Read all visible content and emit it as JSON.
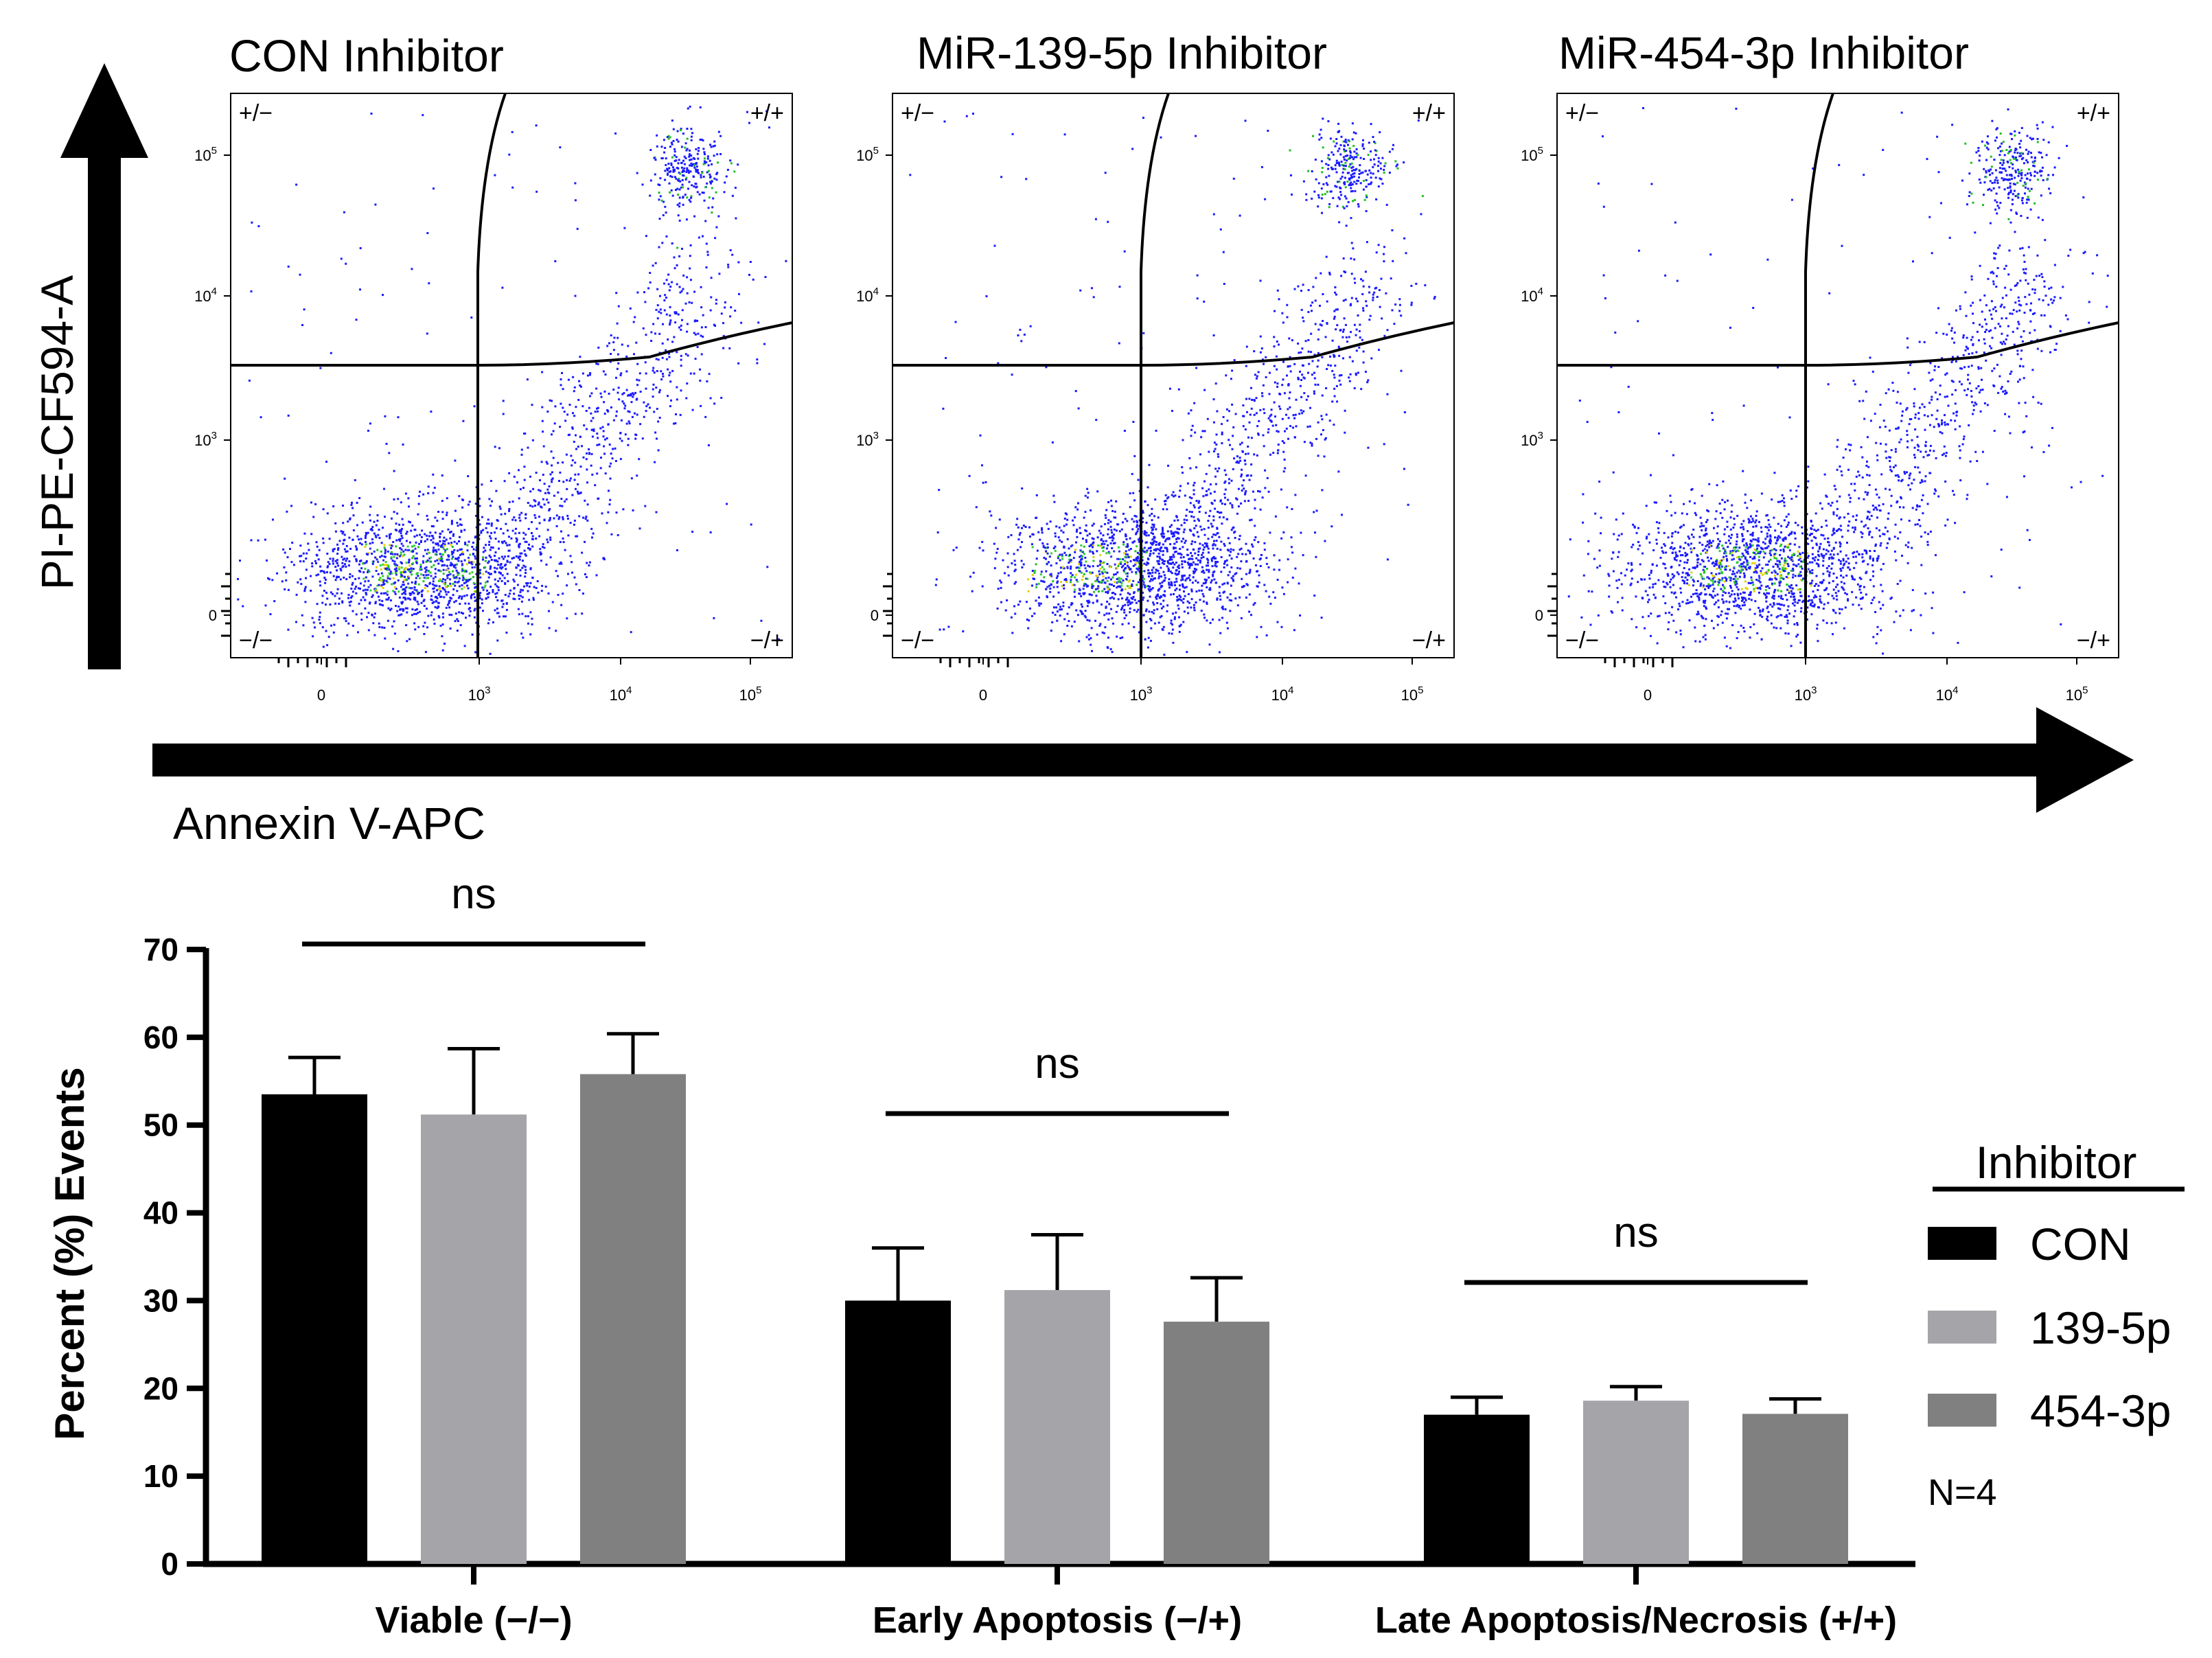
{
  "flow_panels": [
    {
      "title": "CON Inhibitor"
    },
    {
      "title": "MiR-139-5p Inhibitor"
    },
    {
      "title": "MiR-454-3p Inhibitor"
    }
  ],
  "flow_axes": {
    "y_title": "PI-PE-CF594-A",
    "x_title": "Annexin V-APC",
    "y_ticks": [
      "10^5",
      "10^4",
      "10^3",
      "0"
    ],
    "x_ticks": [
      "0",
      "10^3",
      "10^4",
      "10^5"
    ],
    "quadrants": {
      "tl": "+/−",
      "tr": "+/+",
      "bl": "−/−",
      "br": "−/+"
    }
  },
  "legend": {
    "title": "Inhibitor",
    "items": [
      "CON",
      "139-5p",
      "454-3p"
    ],
    "n_label": "N=4"
  },
  "chart_data": {
    "type": "bar",
    "title": "",
    "xlabel": "",
    "ylabel": "Percent (%) Events",
    "ylim": [
      0,
      70
    ],
    "yticks": [
      0,
      10,
      20,
      30,
      40,
      50,
      60,
      70
    ],
    "categories": [
      "Viable (−/−)",
      "Early Apoptosis (−/+)",
      "Late Apoptosis/Necrosis (+/+)"
    ],
    "series": [
      {
        "name": "CON",
        "color": "#000000",
        "values": [
          53.5,
          30,
          17
        ],
        "errors": [
          4.2,
          6,
          2
        ]
      },
      {
        "name": "139-5p",
        "color": "#a5a5a9",
        "values": [
          51.2,
          31.2,
          18.6
        ],
        "errors": [
          7.5,
          6.3,
          1.6
        ]
      },
      {
        "name": "454-3p",
        "color": "#808080",
        "values": [
          55.8,
          27.6,
          17.1
        ],
        "errors": [
          4.6,
          5,
          1.7
        ]
      }
    ],
    "significance": [
      "ns",
      "ns",
      "ns"
    ]
  }
}
